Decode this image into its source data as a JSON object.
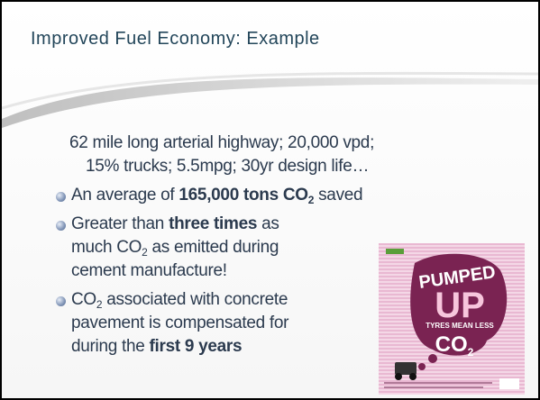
{
  "slide": {
    "title": "Improved Fuel Economy: Example",
    "intro": [
      "62 mile long arterial highway; 20,000 vpd;",
      "15% trucks; 5.5mpg; 30yr design life…"
    ],
    "bullets": [
      [
        [
          "An average of ",
          "165,000 tons CO",
          "2",
          " saved"
        ]
      ],
      [
        [
          "Greater than ",
          "three times",
          " as"
        ],
        [
          "much CO",
          "2",
          " as emitted during"
        ],
        [
          "cement manufacture!"
        ]
      ],
      [
        [
          "CO",
          "2",
          " associated with concrete"
        ],
        [
          "pavement is compensated for"
        ],
        [
          "during the ",
          "first 9 years"
        ]
      ]
    ]
  },
  "poster": {
    "headline1": "PUMPED",
    "headline2": "UP",
    "tagline": "TYRES MEAN LESS",
    "gas": "CO",
    "gas_sub": "2"
  }
}
